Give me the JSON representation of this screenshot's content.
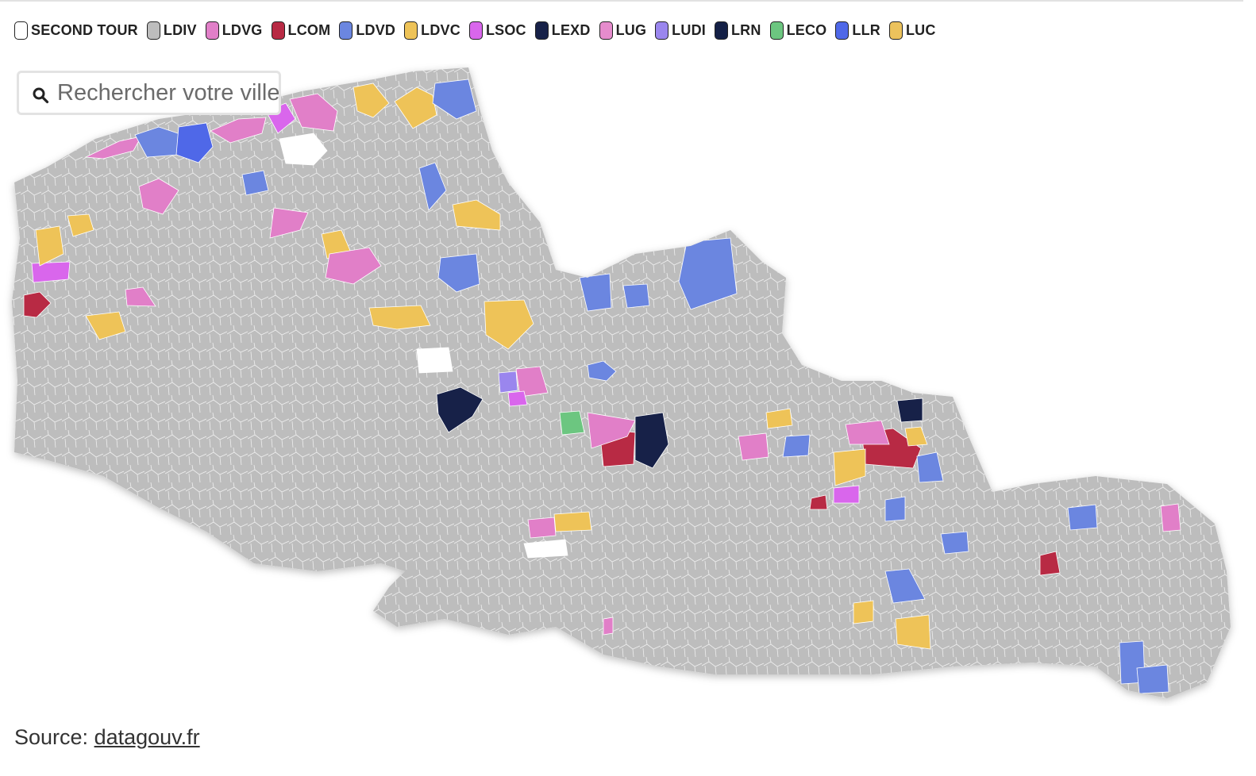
{
  "legend": {
    "items": [
      {
        "id": "second-tour",
        "label": "SECOND TOUR",
        "color": "#ffffff"
      },
      {
        "id": "ldiv",
        "label": "LDIV",
        "color": "#bdbdbd"
      },
      {
        "id": "ldvg",
        "label": "LDVG",
        "color": "#e17fc8"
      },
      {
        "id": "lcom",
        "label": "LCOM",
        "color": "#b82a44"
      },
      {
        "id": "ldvd",
        "label": "LDVD",
        "color": "#6b86e0"
      },
      {
        "id": "ldvc",
        "label": "LDVC",
        "color": "#eec358"
      },
      {
        "id": "lsoc",
        "label": "LSOC",
        "color": "#d966ec"
      },
      {
        "id": "lexd",
        "label": "LEXD",
        "color": "#172148"
      },
      {
        "id": "lug",
        "label": "LUG",
        "color": "#e68ccd"
      },
      {
        "id": "ludi",
        "label": "LUDI",
        "color": "#9a86ee"
      },
      {
        "id": "lrn",
        "label": "LRN",
        "color": "#142046"
      },
      {
        "id": "leco",
        "label": "LECO",
        "color": "#6cc680"
      },
      {
        "id": "llr",
        "label": "LLR",
        "color": "#4f68e8"
      },
      {
        "id": "luc",
        "label": "LUC",
        "color": "#ecc25c"
      }
    ]
  },
  "search": {
    "placeholder": "Rechercher votre ville"
  },
  "source": {
    "prefix": "Source: ",
    "link_text": "datagouv.fr"
  },
  "map": {
    "base_color": "#bdbdbd",
    "border_color": "#ffffff",
    "features": [
      {
        "party": "ldvg"
      },
      {
        "party": "ldvg"
      },
      {
        "party": "ldvg"
      },
      {
        "party": "lsoc"
      },
      {
        "party": "ldvc"
      },
      {
        "party": "ldvc"
      },
      {
        "party": "ldvd"
      },
      {
        "party": "ldvd"
      },
      {
        "party": "llr"
      },
      {
        "party": "ldvg"
      },
      {
        "party": "second-tour"
      },
      {
        "party": "ldvd"
      },
      {
        "party": "ldvd"
      },
      {
        "party": "ldvc"
      },
      {
        "party": "ldvg"
      },
      {
        "party": "ldvc"
      },
      {
        "party": "lsoc"
      },
      {
        "party": "lcom"
      },
      {
        "party": "ldvc"
      },
      {
        "party": "ldvc"
      },
      {
        "party": "ldvg"
      },
      {
        "party": "ldvg"
      },
      {
        "party": "ldvd"
      },
      {
        "party": "ldvc"
      },
      {
        "party": "ldvd"
      },
      {
        "party": "ldvd"
      },
      {
        "party": "ldvc"
      },
      {
        "party": "ldvc"
      },
      {
        "party": "lexd"
      },
      {
        "party": "lexd"
      },
      {
        "party": "lcom"
      },
      {
        "party": "ldvg"
      },
      {
        "party": "leco"
      },
      {
        "party": "ludi"
      },
      {
        "party": "ldvd"
      },
      {
        "party": "ldvg"
      },
      {
        "party": "lcom"
      },
      {
        "party": "ldvc"
      },
      {
        "party": "ldvd"
      },
      {
        "party": "lexd"
      },
      {
        "party": "ldvg"
      },
      {
        "party": "lsoc"
      },
      {
        "party": "ldvd"
      },
      {
        "party": "ldvc"
      },
      {
        "party": "ldvd"
      },
      {
        "party": "lcom"
      },
      {
        "party": "ldvg"
      },
      {
        "party": "ldvd"
      },
      {
        "party": "lcom"
      },
      {
        "party": "ldvd"
      },
      {
        "party": "ldvc"
      },
      {
        "party": "ldvc"
      },
      {
        "party": "ldvd"
      },
      {
        "party": "ldvd"
      },
      {
        "party": "ldvg"
      },
      {
        "party": "ldvg"
      },
      {
        "party": "ldvg"
      },
      {
        "party": "second-tour"
      },
      {
        "party": "ldvc"
      },
      {
        "party": "ldvc"
      },
      {
        "party": "lsoc"
      },
      {
        "party": "second-tour"
      },
      {
        "party": "ldvd"
      },
      {
        "party": "ldvd"
      }
    ]
  }
}
